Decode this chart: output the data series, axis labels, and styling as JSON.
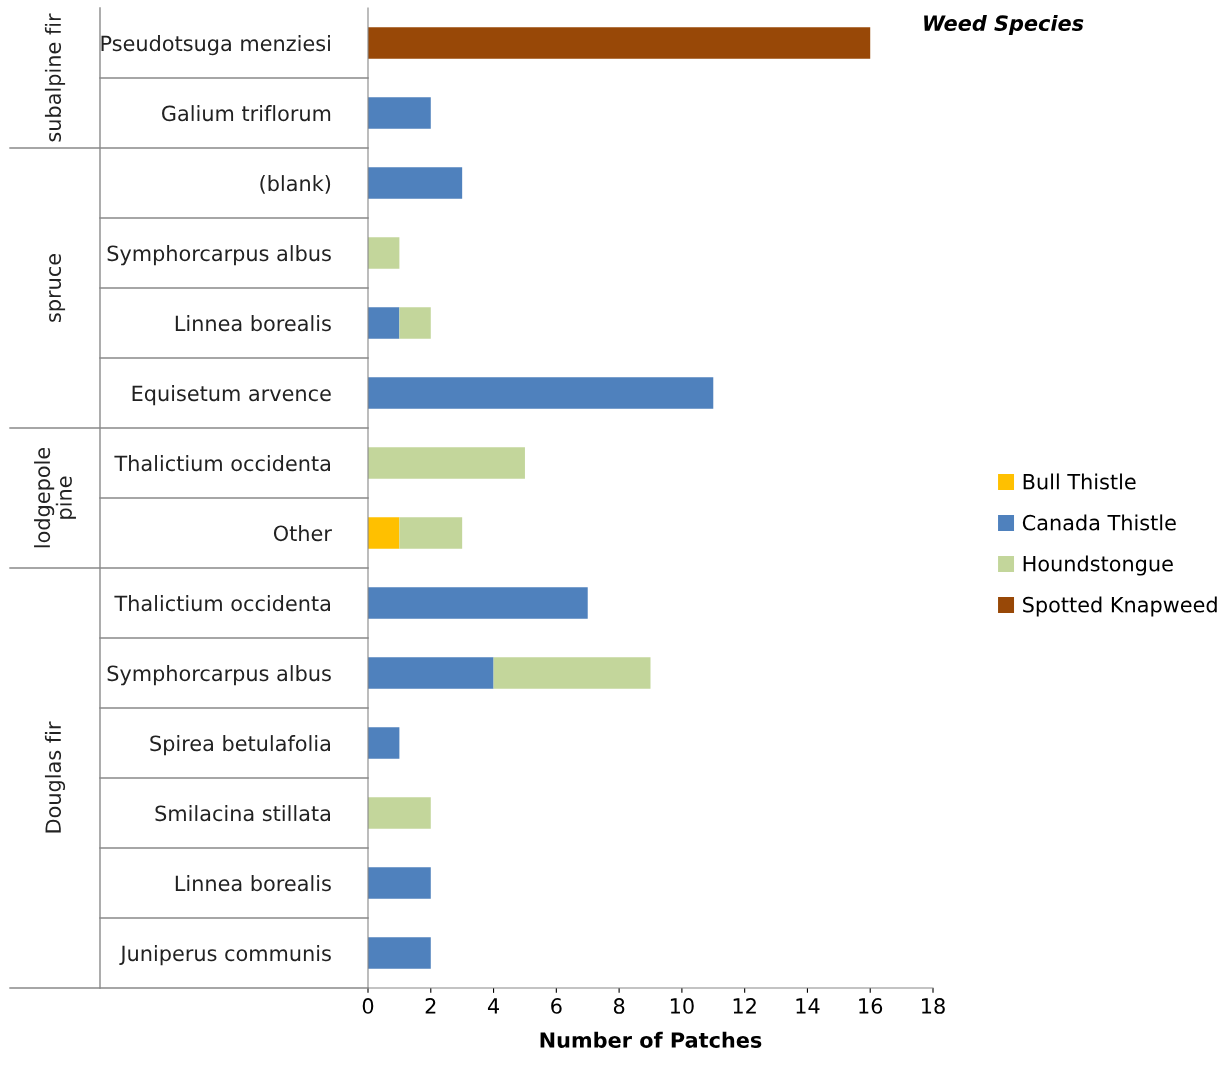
{
  "chart_data": {
    "type": "bar",
    "orientation": "horizontal",
    "stacked": true,
    "xlabel": "Number of Patches",
    "legend_title": "Weed Species",
    "legend": "right",
    "grid": false,
    "categories": [
      "Pseudotsuga menziesi",
      "Galium triflorum",
      "(blank)",
      "Symphorcarpus albus",
      "Linnea borealis",
      "Equisetum arvence",
      "Thalictium occidenta",
      "Other",
      "Thalictium occidenta",
      "Symphorcarpus albus",
      "Spirea betulafolia",
      "Smilacina stillata",
      "Linnea borealis",
      "Juniperus communis"
    ],
    "series": [
      {
        "name": "Bull Thistle",
        "color": "#ffc000",
        "values": [
          null,
          null,
          null,
          null,
          null,
          null,
          null,
          1,
          null,
          null,
          null,
          null,
          null,
          null
        ]
      },
      {
        "name": "Canada Thistle",
        "color": "#4f81bd",
        "values": [
          null,
          2,
          3,
          null,
          1,
          11,
          null,
          null,
          7,
          4,
          1,
          null,
          2,
          2
        ]
      },
      {
        "name": "Houndstongue",
        "color": "#c3d69b",
        "values": [
          null,
          null,
          null,
          1,
          1,
          null,
          5,
          2,
          null,
          5,
          null,
          2,
          null,
          null
        ]
      },
      {
        "name": "Spotted Knapweed",
        "color": "#984807",
        "values": [
          16,
          null,
          null,
          null,
          null,
          null,
          null,
          null,
          null,
          null,
          null,
          null,
          null,
          null
        ]
      }
    ],
    "xlim": [
      0,
      18
    ],
    "xticks": [
      0,
      2,
      4,
      6,
      8,
      10,
      12,
      14,
      16,
      18
    ],
    "annotations": [
      "subalpine fir",
      "spruce",
      "lodgepole pine",
      "Douglas fir"
    ]
  }
}
